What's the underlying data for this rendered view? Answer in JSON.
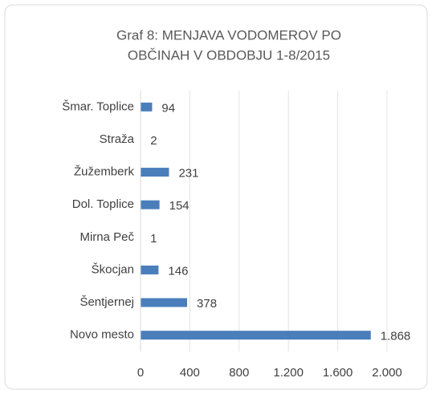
{
  "chart_data": {
    "type": "bar",
    "orientation": "horizontal",
    "title": [
      "Graf 8: MENJAVA VODOMEROV   PO",
      "OBČINAH V OBDOBJU 1-8/2015"
    ],
    "categories": [
      "Šmar. Toplice",
      "Straža",
      "Žužemberk",
      "Dol. Toplice",
      "Mirna Peč",
      "Škocjan",
      "Šentjernej",
      "Novo mesto"
    ],
    "values": [
      94,
      2,
      231,
      154,
      1,
      146,
      378,
      1868
    ],
    "value_labels": [
      "94",
      "2",
      "231",
      "154",
      "1",
      "146",
      "378",
      "1.868"
    ],
    "color": "#4a7ebb",
    "xlim": [
      0,
      2000
    ],
    "xticks": [
      0,
      400,
      800,
      {
        "value": 1200,
        "label": "1.200"
      },
      {
        "value": 1600,
        "label": "1.600"
      },
      {
        "value": 2000,
        "label": "2.000"
      }
    ],
    "grid": true
  }
}
